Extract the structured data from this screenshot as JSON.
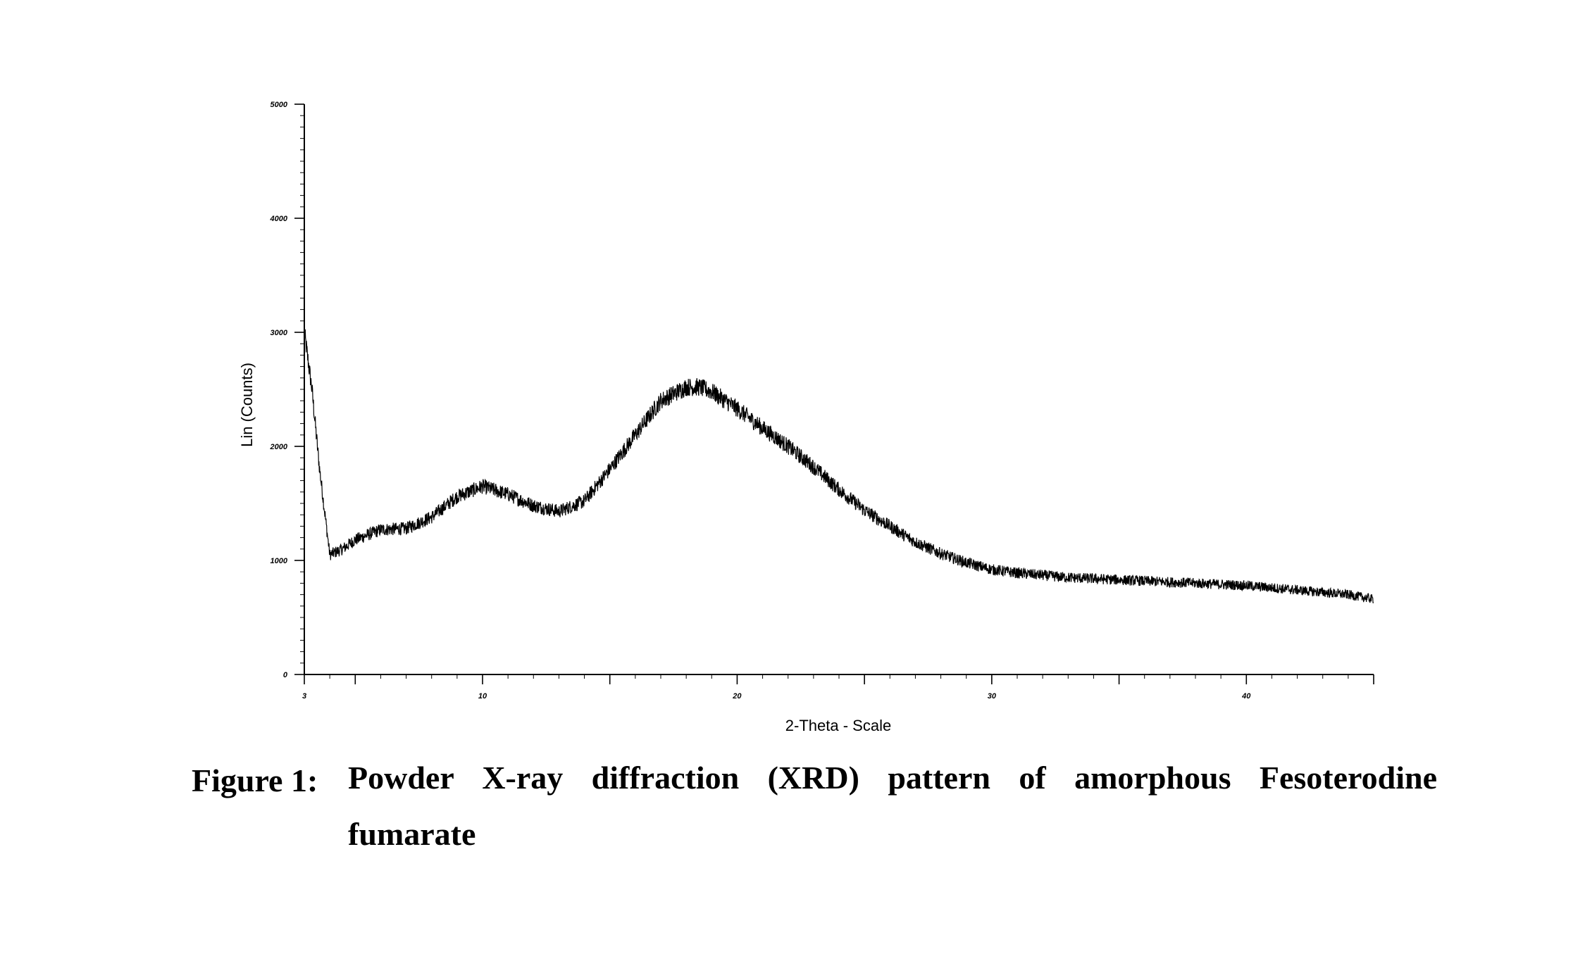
{
  "caption": {
    "label": "Figure 1:",
    "text_line1": "Powder X-ray diffraction (XRD) pattern of amorphous Fesoterodine",
    "text_line2": "fumarate"
  },
  "chart_data": {
    "type": "line",
    "title": "",
    "xlabel": "2-Theta - Scale",
    "ylabel": "Lin (Counts)",
    "xlim": [
      3,
      45
    ],
    "ylim": [
      0,
      5000
    ],
    "x_ticks": [
      3,
      10,
      20,
      30,
      40
    ],
    "x_tick_labels": [
      "3",
      "10",
      "20",
      "30",
      "40"
    ],
    "y_ticks": [
      0,
      1000,
      2000,
      3000,
      4000,
      5000
    ],
    "y_tick_labels": [
      "0",
      "1000",
      "2000",
      "3000",
      "4000",
      "5000"
    ],
    "grid": false,
    "series": [
      {
        "color": "#000000",
        "x": [
          3.0,
          3.3,
          3.6,
          4.0,
          4.5,
          5.0,
          6.0,
          7.0,
          8.0,
          9.0,
          10.0,
          11.0,
          12.0,
          13.0,
          14.0,
          15.0,
          16.0,
          17.0,
          18.0,
          18.5,
          19.0,
          20.0,
          21.0,
          22.0,
          23.0,
          24.0,
          25.0,
          26.0,
          27.0,
          28.0,
          29.0,
          30.0,
          31.0,
          32.0,
          33.0,
          34.0,
          35.0,
          36.0,
          37.0,
          38.0,
          39.0,
          40.0,
          41.0,
          42.0,
          43.0,
          44.0,
          45.0
        ],
        "y": [
          3000,
          2500,
          1800,
          1050,
          1100,
          1180,
          1270,
          1280,
          1380,
          1560,
          1650,
          1580,
          1480,
          1430,
          1520,
          1800,
          2100,
          2400,
          2520,
          2520,
          2480,
          2330,
          2160,
          2000,
          1820,
          1620,
          1440,
          1300,
          1160,
          1060,
          980,
          920,
          890,
          870,
          850,
          840,
          830,
          820,
          810,
          800,
          790,
          780,
          760,
          740,
          720,
          700,
          660
        ]
      }
    ]
  }
}
